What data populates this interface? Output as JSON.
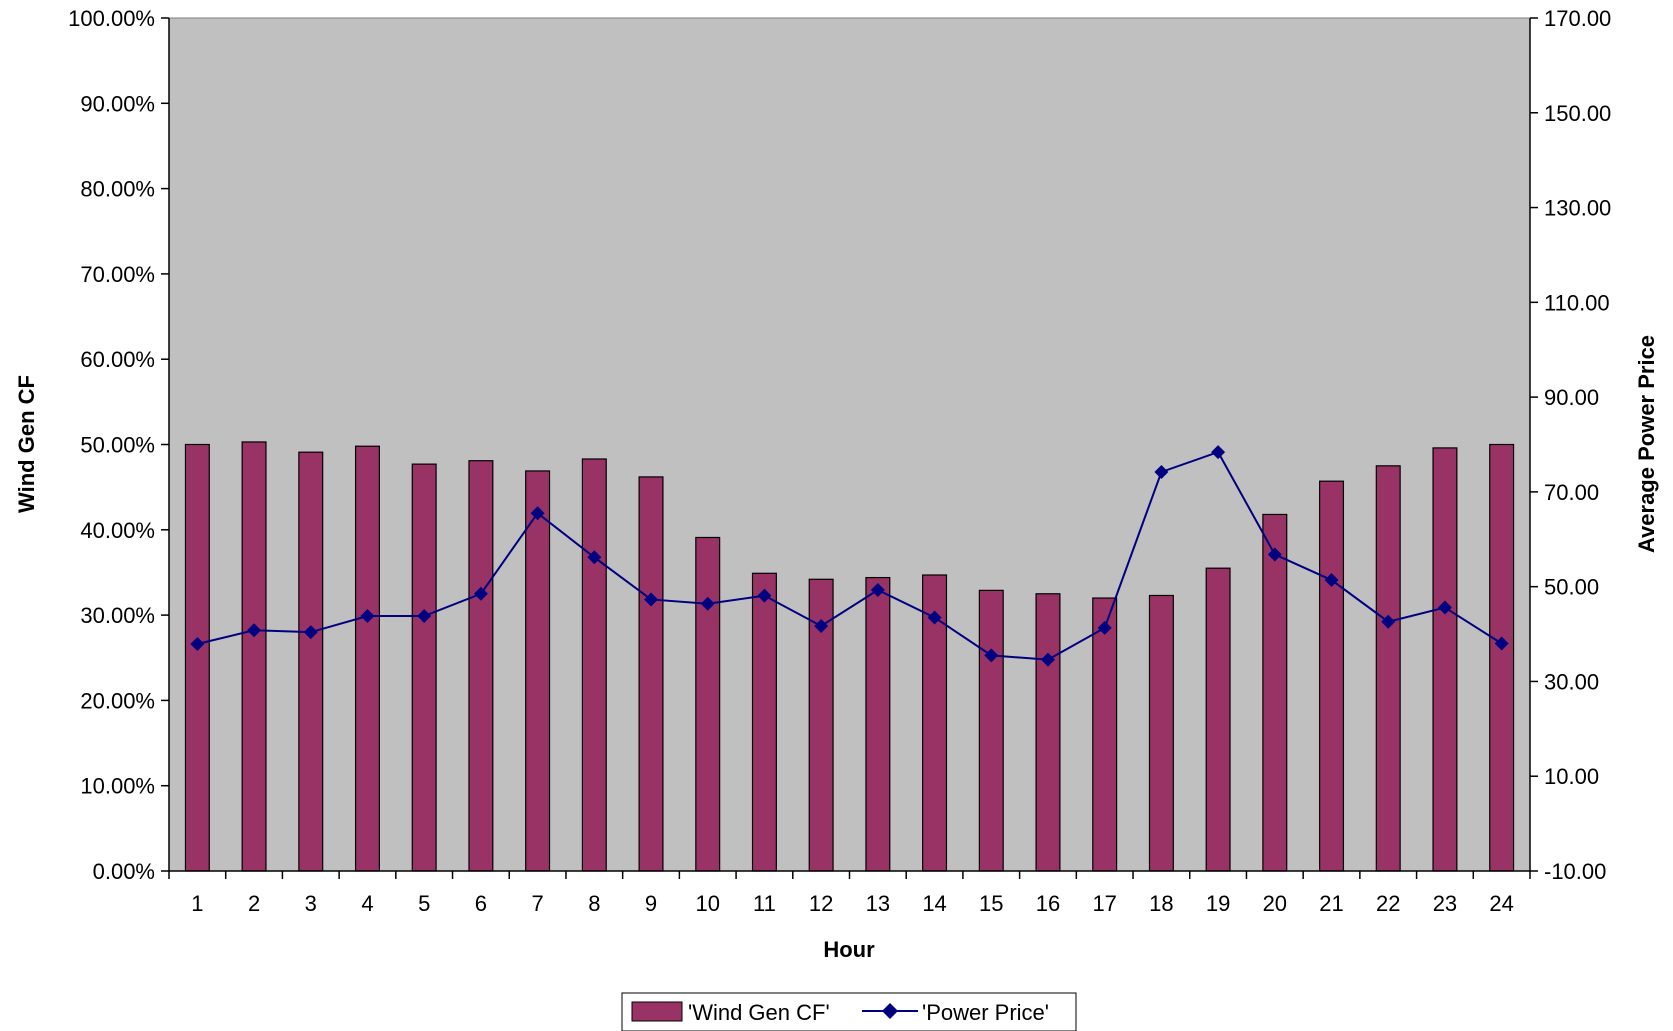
{
  "chart_data": {
    "type": "bar",
    "categories": [
      "1",
      "2",
      "3",
      "4",
      "5",
      "6",
      "7",
      "8",
      "9",
      "10",
      "11",
      "12",
      "13",
      "14",
      "15",
      "16",
      "17",
      "18",
      "19",
      "20",
      "21",
      "22",
      "23",
      "24"
    ],
    "series": [
      {
        "name": "'Wind Gen CF'",
        "type": "bar",
        "axis": "left",
        "color": "#993366",
        "values": [
          0.5,
          0.503,
          0.491,
          0.498,
          0.477,
          0.481,
          0.469,
          0.483,
          0.462,
          0.391,
          0.349,
          0.342,
          0.344,
          0.347,
          0.329,
          0.325,
          0.32,
          0.323,
          0.355,
          0.418,
          0.457,
          0.475,
          0.496,
          0.5
        ]
      },
      {
        "name": "'Power Price'",
        "type": "line",
        "axis": "right",
        "color": "#000080",
        "values": [
          37.9,
          40.8,
          40.4,
          43.8,
          43.8,
          48.5,
          65.5,
          56.2,
          47.3,
          46.4,
          48.1,
          41.7,
          49.3,
          43.5,
          35.5,
          34.6,
          41.3,
          74.2,
          78.4,
          56.8,
          51.4,
          42.6,
          45.6,
          38.0
        ]
      }
    ],
    "xlabel": "Hour",
    "ylabel": "Wind Gen CF",
    "y2label": "Average Power Price",
    "ylim": [
      0,
      1
    ],
    "y2lim": [
      -10,
      170
    ],
    "y_ticks": [
      "0.00%",
      "10.00%",
      "20.00%",
      "30.00%",
      "40.00%",
      "50.00%",
      "60.00%",
      "70.00%",
      "80.00%",
      "90.00%",
      "100.00%"
    ],
    "y2_ticks": [
      "-10.00",
      "10.00",
      "30.00",
      "50.00",
      "70.00",
      "90.00",
      "110.00",
      "130.00",
      "150.00",
      "170.00"
    ],
    "plot_background": "#c0c0c0",
    "grid": false,
    "legend_position": "bottom-center"
  }
}
